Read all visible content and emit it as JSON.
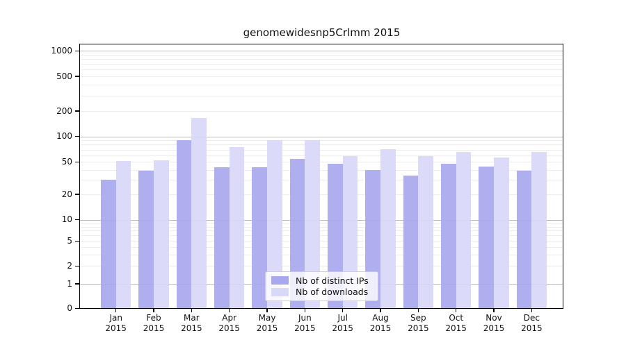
{
  "page": {
    "title": "genomewidesnp5Crlmm 2015"
  },
  "chart_data": {
    "type": "bar",
    "title": "genomewidesnp5Crlmm 2015",
    "x_categories": [
      "Jan 2015",
      "Feb 2015",
      "Mar 2015",
      "Apr 2015",
      "May 2015",
      "Jun 2015",
      "Jul 2015",
      "Aug 2015",
      "Sep 2015",
      "Oct 2015",
      "Nov 2015",
      "Dec 2015"
    ],
    "series": [
      {
        "name": "Nb of distinct IPs",
        "color": "#a8a8ef",
        "values": [
          30,
          39,
          90,
          43,
          43,
          54,
          47,
          40,
          34,
          47,
          44,
          39
        ]
      },
      {
        "name": "Nb of downloads",
        "color": "#d8d8f8",
        "values": [
          51,
          52,
          165,
          75,
          90,
          90,
          58,
          71,
          58,
          66,
          56,
          66
        ]
      }
    ],
    "y_ticks": [
      0,
      1,
      2,
      5,
      10,
      20,
      50,
      100,
      200,
      500,
      1000
    ],
    "y_scale": "log-like (0 pinned at baseline)",
    "ylim": [
      0,
      1000
    ],
    "grid": true,
    "legend": {
      "position": "lower center inside plot",
      "entries": [
        "Nb of distinct IPs",
        "Nb of downloads"
      ]
    }
  },
  "colors": {
    "bar_distinct_ips": "#a8a8ef",
    "bar_downloads": "#d8d8f8",
    "grid_major": "#b9b9b9",
    "grid_minor": "#ececec",
    "axis_frame": "#000000",
    "legend_border": "#cccccc",
    "background": "#ffffff"
  }
}
